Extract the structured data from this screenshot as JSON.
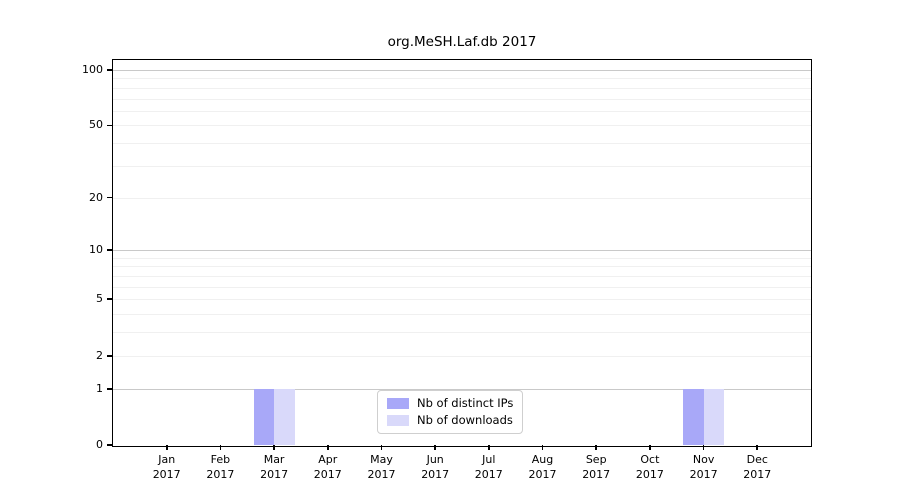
{
  "figure": {
    "background": "#ffffff"
  },
  "chart_data": {
    "type": "bar",
    "title": "org.MeSH.Laf.db 2017",
    "categories": [
      "Jan",
      "Feb",
      "Mar",
      "Apr",
      "May",
      "Jun",
      "Jul",
      "Aug",
      "Sep",
      "Oct",
      "Nov",
      "Dec"
    ],
    "category_year": "2017",
    "series": [
      {
        "name": "Nb of distinct IPs",
        "color": "#a8a8f8",
        "values": [
          0,
          0,
          1,
          0,
          0,
          0,
          0,
          0,
          0,
          0,
          1,
          0
        ]
      },
      {
        "name": "Nb of downloads",
        "color": "#d9d9fa",
        "values": [
          0,
          0,
          1,
          0,
          0,
          0,
          0,
          0,
          0,
          0,
          1,
          0
        ]
      }
    ],
    "xlabel": "",
    "ylabel": "",
    "yscale": "log1p",
    "yticks": [
      0,
      1,
      2,
      5,
      10,
      20,
      50,
      100
    ],
    "ylim": [
      0,
      113
    ],
    "grid": {
      "show": true,
      "major_values": [
        1,
        10,
        100
      ],
      "minor_values": [
        2,
        3,
        4,
        5,
        6,
        7,
        8,
        9,
        20,
        30,
        40,
        50,
        60,
        70,
        80,
        90
      ]
    },
    "legend": {
      "position": "lower center",
      "entries": [
        "Nb of distinct IPs",
        "Nb of downloads"
      ]
    }
  },
  "colors": {
    "axis": "#000000",
    "text": "#000000",
    "grid_major": "#c9c9c9",
    "grid_minor": "#f0f0f0",
    "legend_border": "#cfcfcf"
  }
}
